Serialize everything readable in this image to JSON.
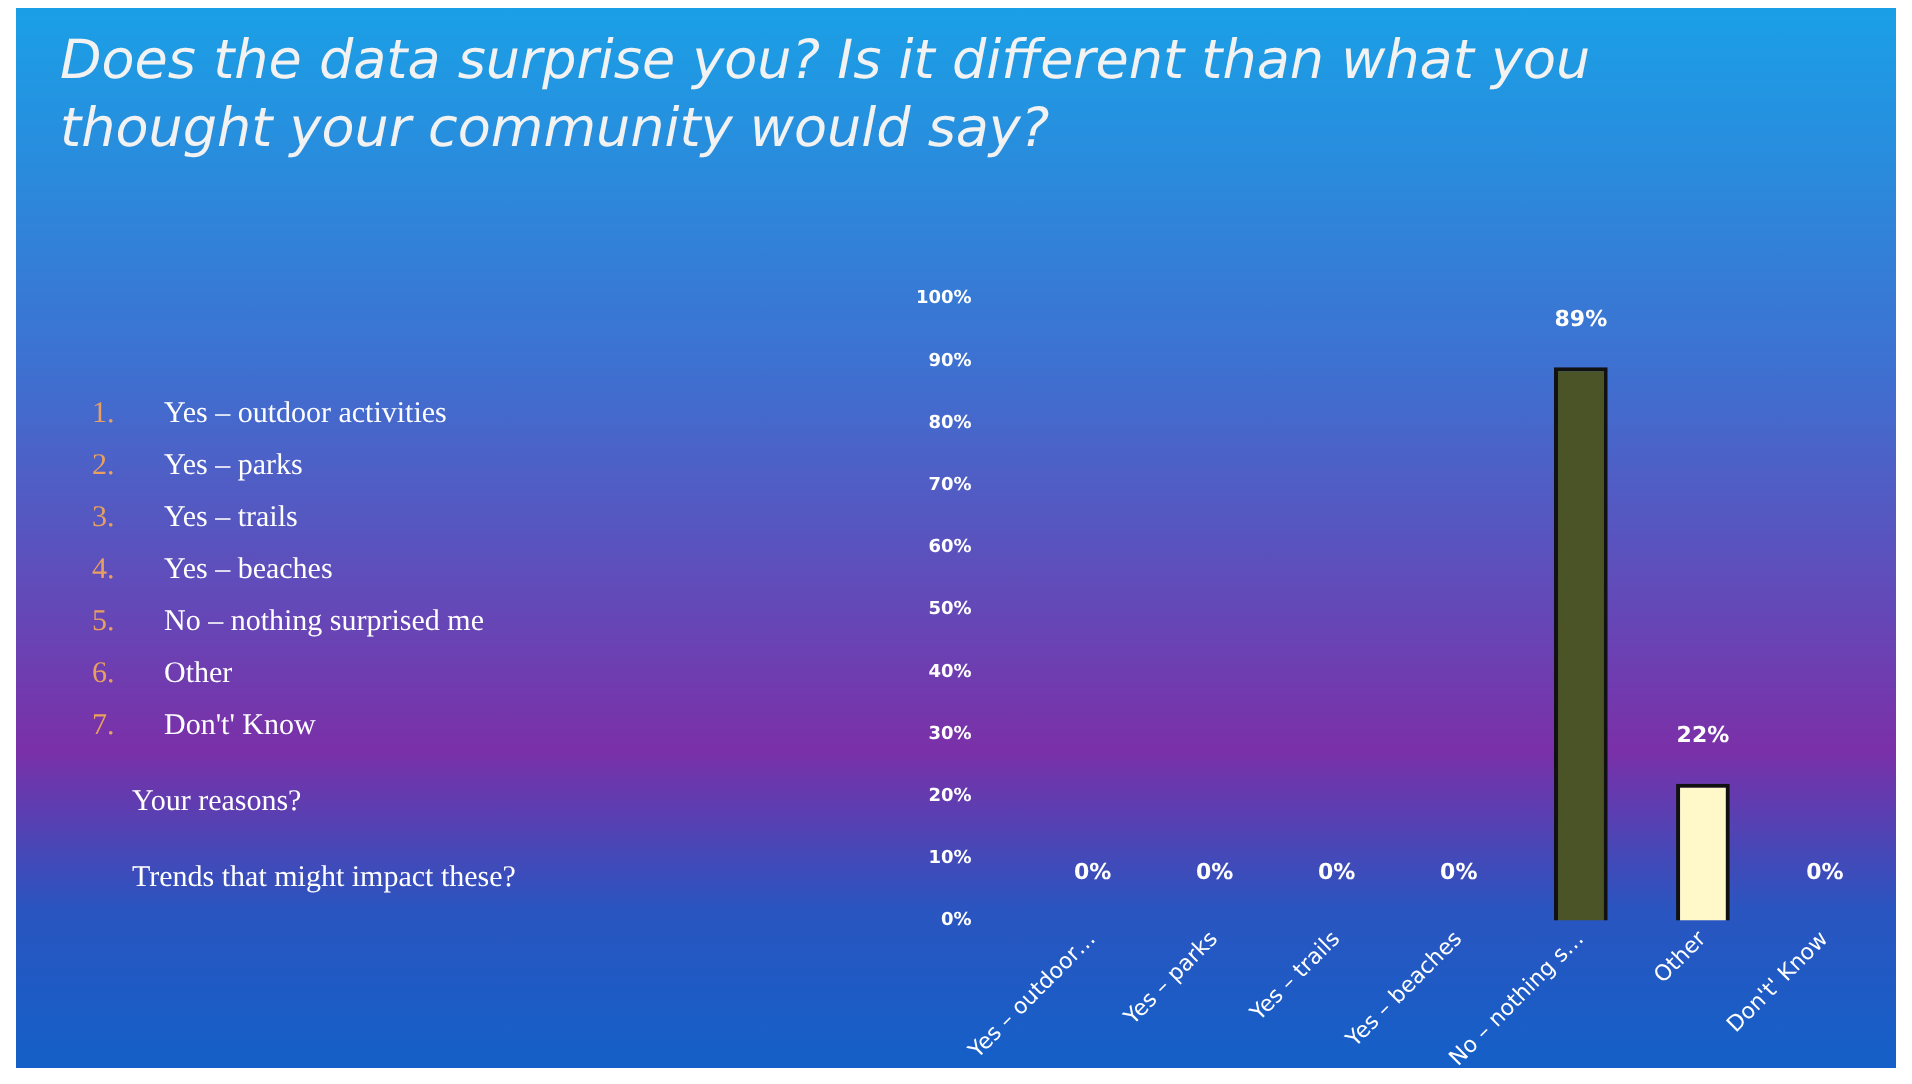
{
  "chart_data": {
    "type": "bar",
    "title": "Does the data surprise you?  Is it different than what you thought your community would say?",
    "categories": [
      "Yes – outdoor…",
      "Yes – parks",
      "Yes – trails",
      "Yes – beaches",
      "No – nothing s…",
      "Other",
      "Don't' Know"
    ],
    "values": [
      0,
      0,
      0,
      0,
      89,
      22,
      0
    ],
    "colors": [
      "#4a5427",
      "#4a5427",
      "#4a5427",
      "#4a5427",
      "#4a5427",
      "#fff8c8",
      "#4a5427"
    ],
    "value_labels": [
      "0%",
      "0%",
      "0%",
      "0%",
      "89%",
      "22%",
      "0%"
    ],
    "ylim": [
      0,
      100
    ],
    "yticks": [
      {
        "value": 0,
        "label": "0%"
      },
      {
        "value": 10,
        "label": "10%"
      },
      {
        "value": 20,
        "label": "20%"
      },
      {
        "value": 30,
        "label": "30%"
      },
      {
        "value": 40,
        "label": "40%"
      },
      {
        "value": 50,
        "label": "50%"
      },
      {
        "value": 60,
        "label": "60%"
      },
      {
        "value": 70,
        "label": "70%"
      },
      {
        "value": 80,
        "label": "80%"
      },
      {
        "value": 90,
        "label": "90%"
      },
      {
        "value": 100,
        "label": "100%"
      }
    ],
    "grid": false,
    "legend": false,
    "annotations": [
      "1. Yes – outdoor activities",
      "2. Yes – parks",
      "3. Yes – trails",
      "4. Yes – beaches",
      "5. No – nothing surprised me",
      "6. Other",
      "7. Don't' Know",
      "Your reasons?",
      "Trends that might impact these?"
    ]
  }
}
